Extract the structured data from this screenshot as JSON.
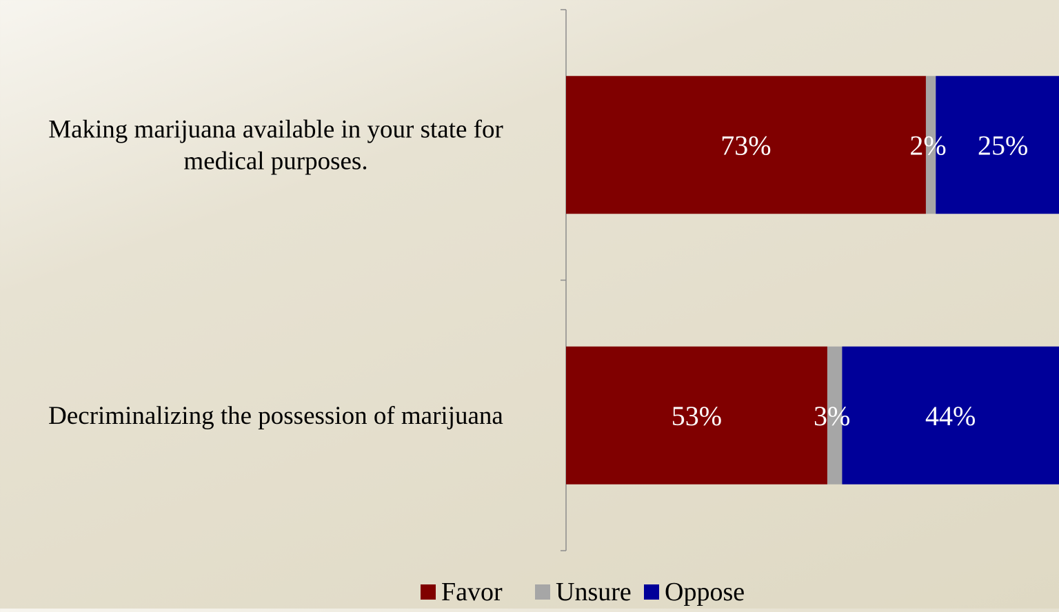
{
  "chart_data": {
    "type": "bar",
    "orientation": "horizontal",
    "stacked": true,
    "categories": [
      "Making marijuana available in your state for medical purposes.",
      "Decriminalizing the possession of marijuana"
    ],
    "series": [
      {
        "name": "Favor",
        "values": [
          73,
          53
        ],
        "color": "#800000"
      },
      {
        "name": "Unsure",
        "values": [
          2,
          3
        ],
        "color": "#a6a6a6"
      },
      {
        "name": "Oppose",
        "values": [
          25,
          44
        ],
        "color": "#000099"
      }
    ],
    "data_labels": [
      [
        "73%",
        "2%",
        "25%"
      ],
      [
        "53%",
        "3%",
        "44%"
      ]
    ],
    "xlim": [
      0,
      100
    ],
    "grid": false,
    "legend_position": "bottom"
  }
}
